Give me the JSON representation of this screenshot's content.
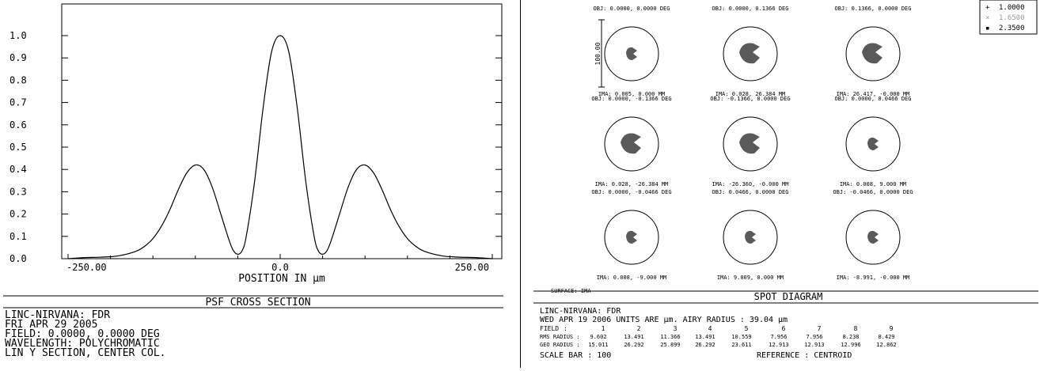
{
  "psf_panel": {
    "footer_title": "PSF CROSS SECTION",
    "info_lines": [
      "LINC-NIRVANA: FDR",
      "FRI APR 29 2005",
      "FIELD: 0.0000, 0.0000 DEG",
      "WAVELENGTH: POLYCHROMATIC",
      "LIN Y SECTION, CENTER COL."
    ]
  },
  "chart_data": [
    {
      "type": "line",
      "title": "PSF CROSS SECTION",
      "xlabel": "POSITION IN µm",
      "ylabel": "",
      "xlim": [
        -250,
        250
      ],
      "ylim": [
        0,
        1.0
      ],
      "x_tick_labels": [
        "-250.00",
        "0.0",
        "250.00"
      ],
      "y_tick_labels": [
        "0.0",
        "0.1",
        "0.2",
        "0.3",
        "0.4",
        "0.5",
        "0.6",
        "0.7",
        "0.8",
        "0.9",
        "1.0"
      ],
      "grid": false,
      "series": [
        {
          "x": [
            -250,
            -230,
            -210,
            -190,
            -170,
            -160,
            -150,
            -140,
            -130,
            -120,
            -110,
            -100,
            -90,
            -80,
            -70,
            -60,
            -55,
            -50,
            -45,
            -40,
            -30,
            -20,
            -10,
            0,
            10,
            20,
            30,
            40,
            45,
            50,
            55,
            60,
            70,
            80,
            90,
            100,
            110,
            120,
            130,
            140,
            150,
            160,
            170,
            190,
            210,
            230,
            250
          ],
          "y": [
            0.0,
            0.005,
            0.007,
            0.013,
            0.033,
            0.055,
            0.09,
            0.145,
            0.22,
            0.31,
            0.385,
            0.42,
            0.4,
            0.32,
            0.2,
            0.08,
            0.035,
            0.02,
            0.035,
            0.1,
            0.35,
            0.68,
            0.93,
            1.0,
            0.93,
            0.68,
            0.35,
            0.1,
            0.035,
            0.02,
            0.035,
            0.08,
            0.2,
            0.32,
            0.4,
            0.42,
            0.385,
            0.31,
            0.22,
            0.145,
            0.09,
            0.055,
            0.033,
            0.013,
            0.007,
            0.005,
            0.0
          ]
        }
      ]
    },
    {
      "type": "scatter",
      "title": "SPOT DIAGRAM",
      "legend": {
        "placement": "top-right",
        "entries": [
          {
            "label": "1.0000",
            "symbol": "+"
          },
          {
            "label": "1.6500",
            "symbol": "×"
          },
          {
            "label": "2.3500",
            "symbol": "▪"
          }
        ]
      },
      "scale_bar_label": "100.00",
      "surface_label": "SURFACE: IMA",
      "spots": [
        {
          "obj": "OBJ: 0.0000, 0.0000 DEG",
          "ima": "IMA: 0.005, 0.000 MM",
          "shape": "small"
        },
        {
          "obj": "OBJ: 0.0000, 0.1366 DEG",
          "ima": "IMA: 0.028, 26.384 MM",
          "shape": "large"
        },
        {
          "obj": "OBJ: 0.1366, 0.0000 DEG",
          "ima": "IMA: 26.417, -0.000 MM",
          "shape": "large"
        },
        {
          "obj": "OBJ: 0.0000, -0.1366 DEG",
          "ima": "IMA: 0.028, -26.384 MM",
          "shape": "large"
        },
        {
          "obj": "OBJ: -0.1366, 0.0000 DEG",
          "ima": "IMA: -26.360, -0.000 MM",
          "shape": "large"
        },
        {
          "obj": "OBJ: 0.0000, 0.0466 DEG",
          "ima": "IMA: 0.008, 9.000 MM",
          "shape": "small"
        },
        {
          "obj": "OBJ: 0.0000, -0.0466 DEG",
          "ima": "IMA: 0.008, -9.000 MM",
          "shape": "small"
        },
        {
          "obj": "OBJ: 0.0466, 0.0000 DEG",
          "ima": "IMA: 9.009, 0.000 MM",
          "shape": "small"
        },
        {
          "obj": "OBJ: -0.0466, 0.0000 DEG",
          "ima": "IMA: -8.991, -0.000 MM",
          "shape": "small"
        }
      ],
      "table": {
        "field_label": "FIELD",
        "rms_label": "RMS RADIUS :",
        "geo_label": "GEO RADIUS :",
        "fields": [
          "1",
          "2",
          "3",
          "4",
          "5",
          "6",
          "7",
          "8",
          "9"
        ],
        "rms": [
          "9.602",
          "13.491",
          "11.366",
          "13.491",
          "10.559",
          "7.956",
          "7.956",
          "8.238",
          "8.429"
        ],
        "geo": [
          "15.011",
          "26.292",
          "25.899",
          "26.292",
          "23.611",
          "12.913",
          "12.913",
          "12.996",
          "12.862"
        ]
      }
    }
  ],
  "spot_panel": {
    "footer_title": "SPOT DIAGRAM",
    "info_line1": "LINC-NIRVANA: FDR",
    "info_line2": "WED APR 19 2006  UNITS ARE µm.  AIRY RADIUS : 39.04 µm",
    "field_colon": ":",
    "scale_bar_text": "SCALE BAR  :     100",
    "reference_text": "REFERENCE  : CENTROID"
  },
  "colors": {
    "spot_fill": "#5a5a5a",
    "legend_dim": "#9a9a9a",
    "line": "#000000"
  }
}
